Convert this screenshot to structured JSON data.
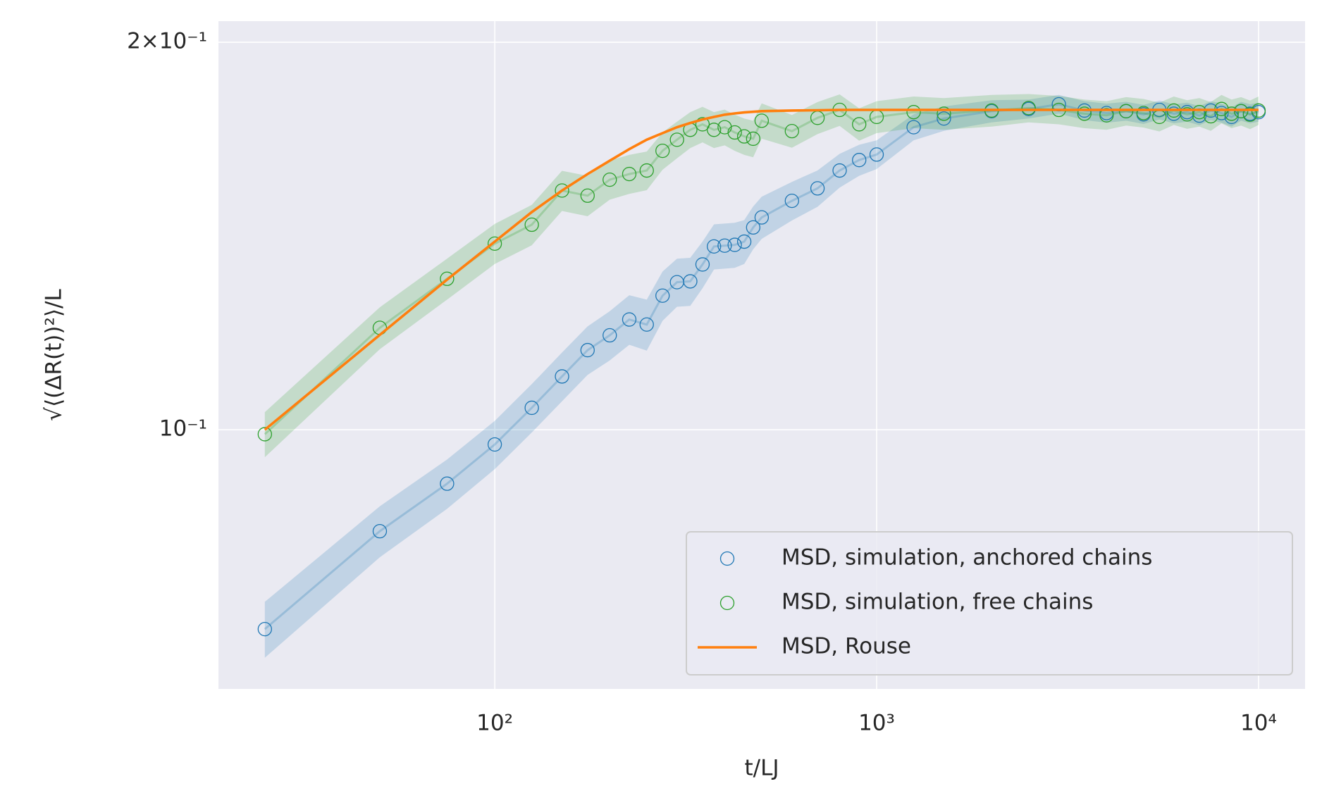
{
  "chart_data": {
    "type": "scatter",
    "xlabel": "t/LJ",
    "ylabel": "√⟨(ΔR(t))²⟩/L",
    "xscale": "log",
    "yscale": "log",
    "grid": true,
    "legend": "lower right",
    "xlim": [
      18.9,
      13240
    ],
    "ylim": [
      0.0629,
      0.2077
    ],
    "xticks": [
      {
        "value": 100,
        "label": "10²"
      },
      {
        "value": 1000,
        "label": "10³"
      },
      {
        "value": 10000,
        "label": "10⁴"
      }
    ],
    "yticks": [
      {
        "value": 0.1,
        "label": "10⁻¹"
      },
      {
        "value": 0.2,
        "label": "2×10⁻¹"
      }
    ],
    "x": [
      25,
      50,
      75,
      100,
      125,
      150,
      175,
      200,
      225,
      250,
      275,
      300,
      325,
      350,
      375,
      400,
      425,
      450,
      475,
      500,
      600,
      700,
      800,
      900,
      1000,
      1250,
      1500,
      2000,
      2500,
      3000,
      3500,
      4000,
      4500,
      5000,
      5500,
      6000,
      6500,
      7000,
      7500,
      8000,
      8500,
      9000,
      9500,
      10000
    ],
    "series": [
      {
        "name": "MSD, simulation, anchored chains",
        "color": "#1f77b4",
        "style": "markers",
        "values": [
          0.07,
          0.0834,
          0.0908,
          0.0974,
          0.104,
          0.11,
          0.1153,
          0.1184,
          0.1218,
          0.1207,
          0.1271,
          0.1302,
          0.1304,
          0.1344,
          0.1388,
          0.139,
          0.1392,
          0.14,
          0.1436,
          0.1462,
          0.1506,
          0.154,
          0.159,
          0.162,
          0.1636,
          0.1718,
          0.1745,
          0.1768,
          0.1775,
          0.179,
          0.177,
          0.1762,
          0.1768,
          0.1758,
          0.1772,
          0.176,
          0.1765,
          0.1754,
          0.177,
          0.1762,
          0.175,
          0.1768,
          0.176,
          0.1765
        ],
        "errors": [
          0.0035,
          0.0038,
          0.004,
          0.0042,
          0.0045,
          0.0048,
          0.005,
          0.0052,
          0.0054,
          0.0055,
          0.0056,
          0.0056,
          0.0056,
          0.0056,
          0.0056,
          0.0056,
          0.0056,
          0.0055,
          0.0055,
          0.0055,
          0.0052,
          0.005,
          0.0048,
          0.0045,
          0.0042,
          0.004,
          0.0038,
          0.0035,
          0.003,
          0.003,
          0.003,
          0.003,
          0.003,
          0.003,
          0.003,
          0.003,
          0.003,
          0.003,
          0.003,
          0.003,
          0.003,
          0.003,
          0.003,
          0.003
        ]
      },
      {
        "name": "MSD, simulation, free chains",
        "color": "#2ca02c",
        "style": "markers",
        "values": [
          0.0992,
          0.12,
          0.131,
          0.1395,
          0.1443,
          0.1534,
          0.152,
          0.1564,
          0.158,
          0.159,
          0.1647,
          0.168,
          0.171,
          0.1727,
          0.171,
          0.1718,
          0.1702,
          0.169,
          0.1683,
          0.1738,
          0.1706,
          0.1747,
          0.1772,
          0.1727,
          0.175,
          0.1765,
          0.176,
          0.177,
          0.1778,
          0.1772,
          0.176,
          0.1755,
          0.1768,
          0.1762,
          0.175,
          0.177,
          0.1758,
          0.1765,
          0.1752,
          0.1775,
          0.176,
          0.1768,
          0.1757,
          0.177
        ],
        "errors": [
          0.004,
          0.0045,
          0.0048,
          0.005,
          0.0052,
          0.0055,
          0.0055,
          0.0055,
          0.0055,
          0.0055,
          0.0055,
          0.0055,
          0.0055,
          0.0055,
          0.0055,
          0.0055,
          0.0055,
          0.0055,
          0.0055,
          0.0055,
          0.005,
          0.005,
          0.005,
          0.005,
          0.005,
          0.005,
          0.005,
          0.005,
          0.0045,
          0.0045,
          0.0045,
          0.0045,
          0.0045,
          0.0045,
          0.0045,
          0.0045,
          0.0045,
          0.0045,
          0.0045,
          0.0045,
          0.0045,
          0.0045,
          0.0045,
          0.0045
        ]
      },
      {
        "name": "MSD, Rouse",
        "color": "#ff7f0e",
        "style": "line",
        "values": [
          0.1,
          0.1185,
          0.1308,
          0.14,
          0.1476,
          0.1534,
          0.158,
          0.1618,
          0.1652,
          0.168,
          0.17,
          0.1718,
          0.1731,
          0.1742,
          0.175,
          0.1757,
          0.1761,
          0.1764,
          0.1766,
          0.1768,
          0.177,
          0.1771,
          0.1772,
          0.1772,
          0.1772,
          0.1772,
          0.1772,
          0.1772,
          0.1772,
          0.1772,
          0.1772,
          0.1772,
          0.1772,
          0.1772,
          0.1772,
          0.1772,
          0.1772,
          0.1772,
          0.1772,
          0.1772,
          0.1772,
          0.1772,
          0.1772,
          0.1772
        ]
      }
    ]
  }
}
